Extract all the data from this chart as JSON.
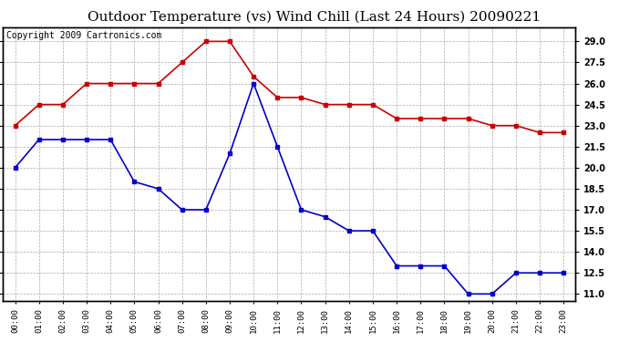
{
  "title": "Outdoor Temperature (vs) Wind Chill (Last 24 Hours) 20090221",
  "copyright": "Copyright 2009 Cartronics.com",
  "hours": [
    "00:00",
    "01:00",
    "02:00",
    "03:00",
    "04:00",
    "05:00",
    "06:00",
    "07:00",
    "08:00",
    "09:00",
    "10:00",
    "11:00",
    "12:00",
    "13:00",
    "14:00",
    "15:00",
    "16:00",
    "17:00",
    "18:00",
    "19:00",
    "20:00",
    "21:00",
    "22:00",
    "23:00"
  ],
  "temp": [
    23.0,
    24.5,
    24.5,
    26.0,
    26.0,
    26.0,
    26.0,
    27.5,
    29.0,
    29.0,
    26.5,
    25.0,
    25.0,
    24.5,
    24.5,
    24.5,
    23.5,
    23.5,
    23.5,
    23.5,
    23.0,
    23.0,
    22.5,
    22.5
  ],
  "wind_chill": [
    20.0,
    22.0,
    22.0,
    22.0,
    22.0,
    19.0,
    18.5,
    17.0,
    17.0,
    21.0,
    26.0,
    21.5,
    17.0,
    16.5,
    15.5,
    15.5,
    13.0,
    13.0,
    13.0,
    11.0,
    11.0,
    12.5,
    12.5,
    12.5
  ],
  "temp_color": "#cc0000",
  "wind_chill_color": "#0000cc",
  "background_color": "#ffffff",
  "grid_color": "#aaaaaa",
  "ylim": [
    10.5,
    30.0
  ],
  "yticks": [
    11.0,
    12.5,
    14.0,
    15.5,
    17.0,
    18.5,
    20.0,
    21.5,
    23.0,
    24.5,
    26.0,
    27.5,
    29.0
  ],
  "title_fontsize": 11,
  "copyright_fontsize": 7,
  "marker": "s",
  "marker_size": 3,
  "linewidth": 1.2
}
